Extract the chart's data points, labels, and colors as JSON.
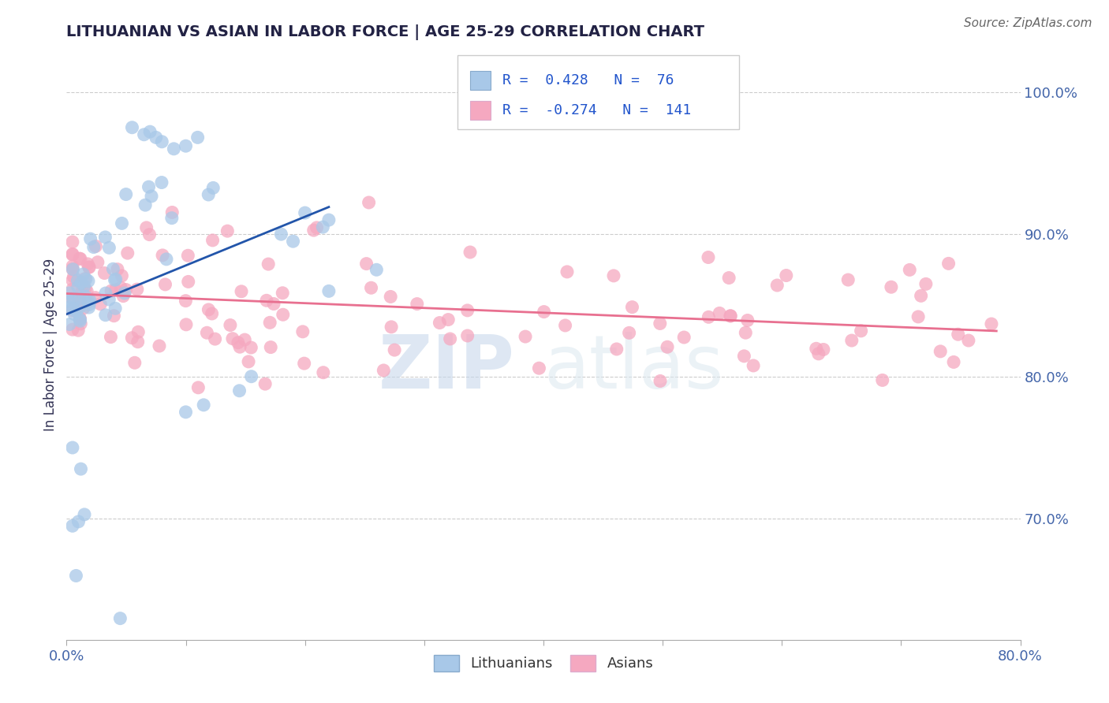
{
  "title": "LITHUANIAN VS ASIAN IN LABOR FORCE | AGE 25-29 CORRELATION CHART",
  "source_text": "Source: ZipAtlas.com",
  "ylabel": "In Labor Force | Age 25-29",
  "right_yticks": [
    0.7,
    0.8,
    0.9,
    1.0
  ],
  "right_yticklabels": [
    "70.0%",
    "80.0%",
    "90.0%",
    "100.0%"
  ],
  "xlim": [
    0.0,
    0.8
  ],
  "ylim": [
    0.615,
    1.03
  ],
  "blue_color": "#a8c8e8",
  "pink_color": "#f5a8c0",
  "blue_line_color": "#2255aa",
  "pink_line_color": "#e87090",
  "legend_R_blue": "0.428",
  "legend_N_blue": "76",
  "legend_R_pink": "-0.274",
  "legend_N_pink": "141",
  "title_color": "#222244",
  "source_color": "#666666",
  "watermark1": "ZIP",
  "watermark2": "atlas",
  "xtick_positions": [
    0.0,
    0.1,
    0.2,
    0.3,
    0.4,
    0.5,
    0.6,
    0.7,
    0.8
  ],
  "xtick_labels": [
    "0.0%",
    "",
    "",
    "",
    "",
    "",
    "",
    "",
    "80.0%"
  ]
}
